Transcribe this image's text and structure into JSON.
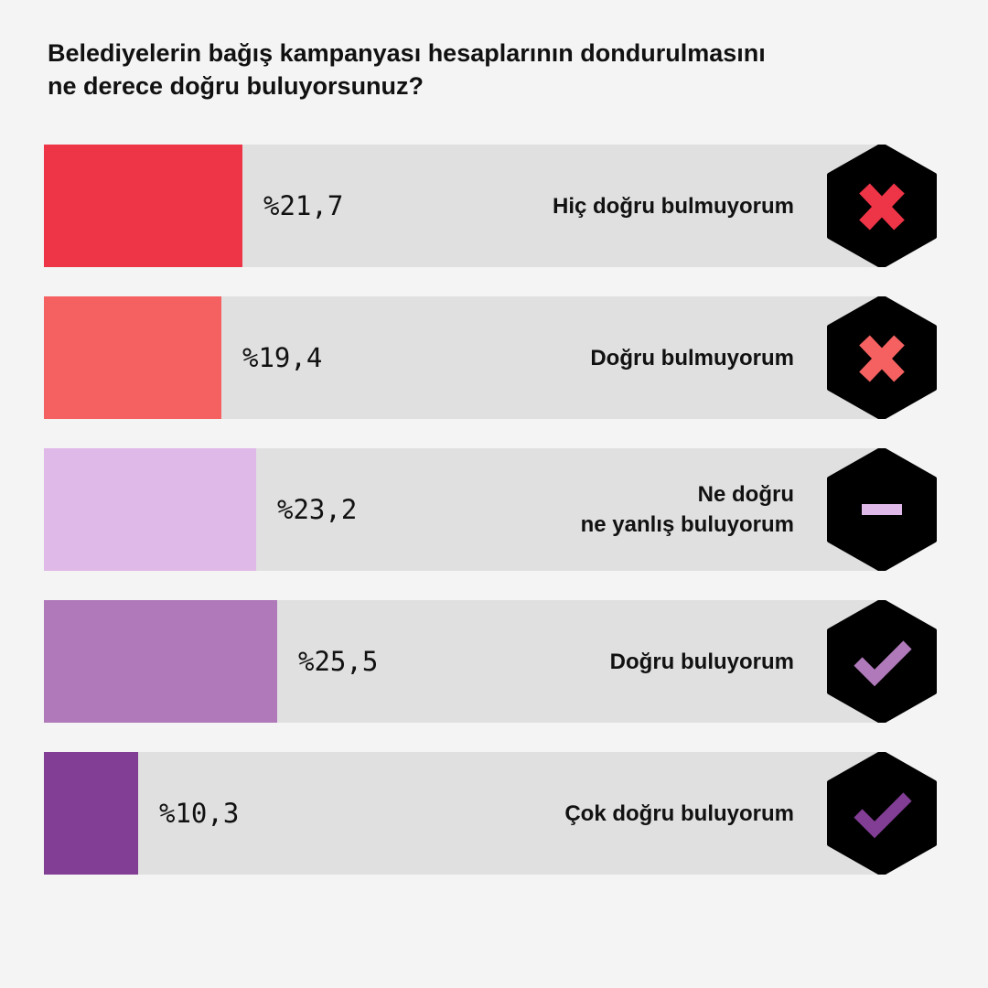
{
  "title": {
    "line1": "Belediyelerin bağış kampanyası hesaplarının dondurulmasını",
    "line2": "ne derece doğru buluyorsunuz?"
  },
  "colors": {
    "track": "#e0e0e0",
    "hexagon": "#000000"
  },
  "chart_data": {
    "type": "bar",
    "orientation": "horizontal",
    "title": "Belediyelerin bağış kampanyası hesaplarının dondurulmasını ne derece doğru buluyorsunuz?",
    "value_prefix": "%",
    "decimal_separator": ",",
    "xlim": [
      0,
      100
    ],
    "categories": [
      "Hiç doğru bulmuyorum",
      "Doğru bulmuyorum",
      "Ne doğru ne yanlış buluyorum",
      "Doğru buluyorum",
      "Çok doğru buluyorum"
    ],
    "values": [
      21.7,
      19.4,
      23.2,
      25.5,
      10.3
    ],
    "bars": [
      {
        "label_lines": [
          "Hiç doğru bulmuyorum"
        ],
        "value": 21.7,
        "value_text": "%21,7",
        "color": "#ee3447",
        "icon": "cross-icon",
        "icon_color": "#ee3447"
      },
      {
        "label_lines": [
          "Doğru bulmuyorum"
        ],
        "value": 19.4,
        "value_text": "%19,4",
        "color": "#f56161",
        "icon": "cross-icon",
        "icon_color": "#f56161"
      },
      {
        "label_lines": [
          "Ne doğru",
          "ne yanlış buluyorum"
        ],
        "value": 23.2,
        "value_text": "%23,2",
        "color": "#dfb9e7",
        "icon": "dash-icon",
        "icon_color": "#dfb9e7"
      },
      {
        "label_lines": [
          "Doğru buluyorum"
        ],
        "value": 25.5,
        "value_text": "%25,5",
        "color": "#b07aba",
        "icon": "check-icon",
        "icon_color": "#b07aba"
      },
      {
        "label_lines": [
          "Çok doğru buluyorum"
        ],
        "value": 10.3,
        "value_text": "%10,3",
        "color": "#823d95",
        "icon": "check-icon",
        "icon_color": "#823d95"
      }
    ]
  }
}
